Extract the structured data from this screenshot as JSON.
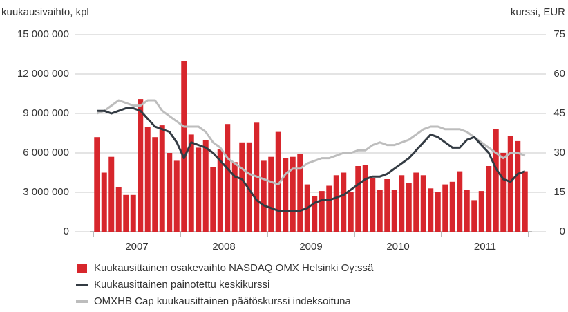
{
  "chart_data": {
    "type": "bar_line",
    "y_axis_label": "kuukausivaihto, kpl",
    "y2_axis_label": "kurssi, EUR",
    "categories": [
      null,
      null,
      null,
      null,
      null,
      null,
      "2007",
      null,
      null,
      null,
      null,
      null,
      null,
      null,
      null,
      null,
      null,
      null,
      "2008",
      null,
      null,
      null,
      null,
      null,
      null,
      null,
      null,
      null,
      null,
      null,
      "2009",
      null,
      null,
      null,
      null,
      null,
      null,
      null,
      null,
      null,
      null,
      null,
      "2010",
      null,
      null,
      null,
      null,
      null,
      null,
      null,
      null,
      null,
      null,
      null,
      "2011",
      null,
      null,
      null,
      null,
      null
    ],
    "series": [
      {
        "name": "Kuukausittainen osakevaihto NASDAQ OMX Helsinki Oy:ssä",
        "type": "bar",
        "color": "#d7262c",
        "values": [
          7200000,
          4500000,
          5700000,
          3400000,
          2800000,
          2800000,
          10100000,
          8000000,
          7200000,
          8100000,
          6000000,
          5400000,
          13000000,
          7400000,
          6400000,
          7000000,
          4900000,
          6300000,
          8200000,
          5300000,
          6800000,
          6800000,
          8300000,
          5400000,
          5700000,
          7600000,
          5600000,
          5700000,
          5900000,
          3600000,
          2700000,
          3100000,
          3500000,
          4300000,
          4500000,
          3000000,
          5000000,
          5100000,
          4100000,
          3200000,
          4000000,
          3200000,
          4300000,
          3700000,
          4500000,
          4300000,
          3300000,
          3000000,
          3600000,
          3800000,
          4600000,
          3200000,
          2400000,
          3100000,
          5000000,
          7800000,
          6000000,
          7300000,
          6900000,
          4600000
        ]
      },
      {
        "name": "Kuukausittainen painotettu keskikurssi",
        "type": "line",
        "axis": "y2",
        "color": "#333b43",
        "values": [
          46,
          46,
          45,
          46,
          47,
          47,
          46,
          43,
          40,
          39,
          38,
          34,
          28,
          34,
          33,
          32,
          30,
          27,
          24,
          21,
          20,
          16,
          12,
          10,
          9,
          8,
          8,
          8,
          8,
          9,
          11,
          12,
          12,
          13,
          14,
          16,
          18,
          20,
          21,
          21,
          22,
          24,
          26,
          28,
          31,
          34,
          37,
          36,
          34,
          32,
          32,
          35,
          36,
          33,
          30,
          24,
          20,
          19,
          22,
          23
        ]
      },
      {
        "name": "OMXHB Cap kuukausittainen päätöskurssi indeksoituna",
        "type": "line",
        "axis": "y2",
        "color": "#bdbdbd",
        "values": [
          45,
          46,
          48,
          50,
          49,
          48,
          48,
          50,
          50,
          46,
          44,
          42,
          40,
          40,
          40,
          38,
          34,
          32,
          28,
          26,
          24,
          22,
          21,
          20,
          19,
          18,
          22,
          24,
          24,
          26,
          27,
          28,
          28,
          29,
          30,
          30,
          31,
          31,
          33,
          34,
          33,
          33,
          34,
          35,
          37,
          39,
          40,
          40,
          39,
          39,
          39,
          38,
          36,
          34,
          32,
          30,
          28,
          30,
          30,
          29
        ]
      }
    ],
    "ylim": [
      0,
      15000000
    ],
    "yticks": [
      0,
      {
        "value": 3000000,
        "label": "3 000 000"
      },
      {
        "value": 6000000,
        "label": "6 000 000"
      },
      {
        "value": 9000000,
        "label": "9 000 000"
      },
      {
        "value": 12000000,
        "label": "12 000 000"
      },
      {
        "value": 15000000,
        "label": "15 000 000"
      }
    ],
    "y2lim": [
      0,
      75
    ],
    "y2ticks": [
      0,
      15,
      30,
      45,
      60,
      75
    ],
    "grid": true
  }
}
